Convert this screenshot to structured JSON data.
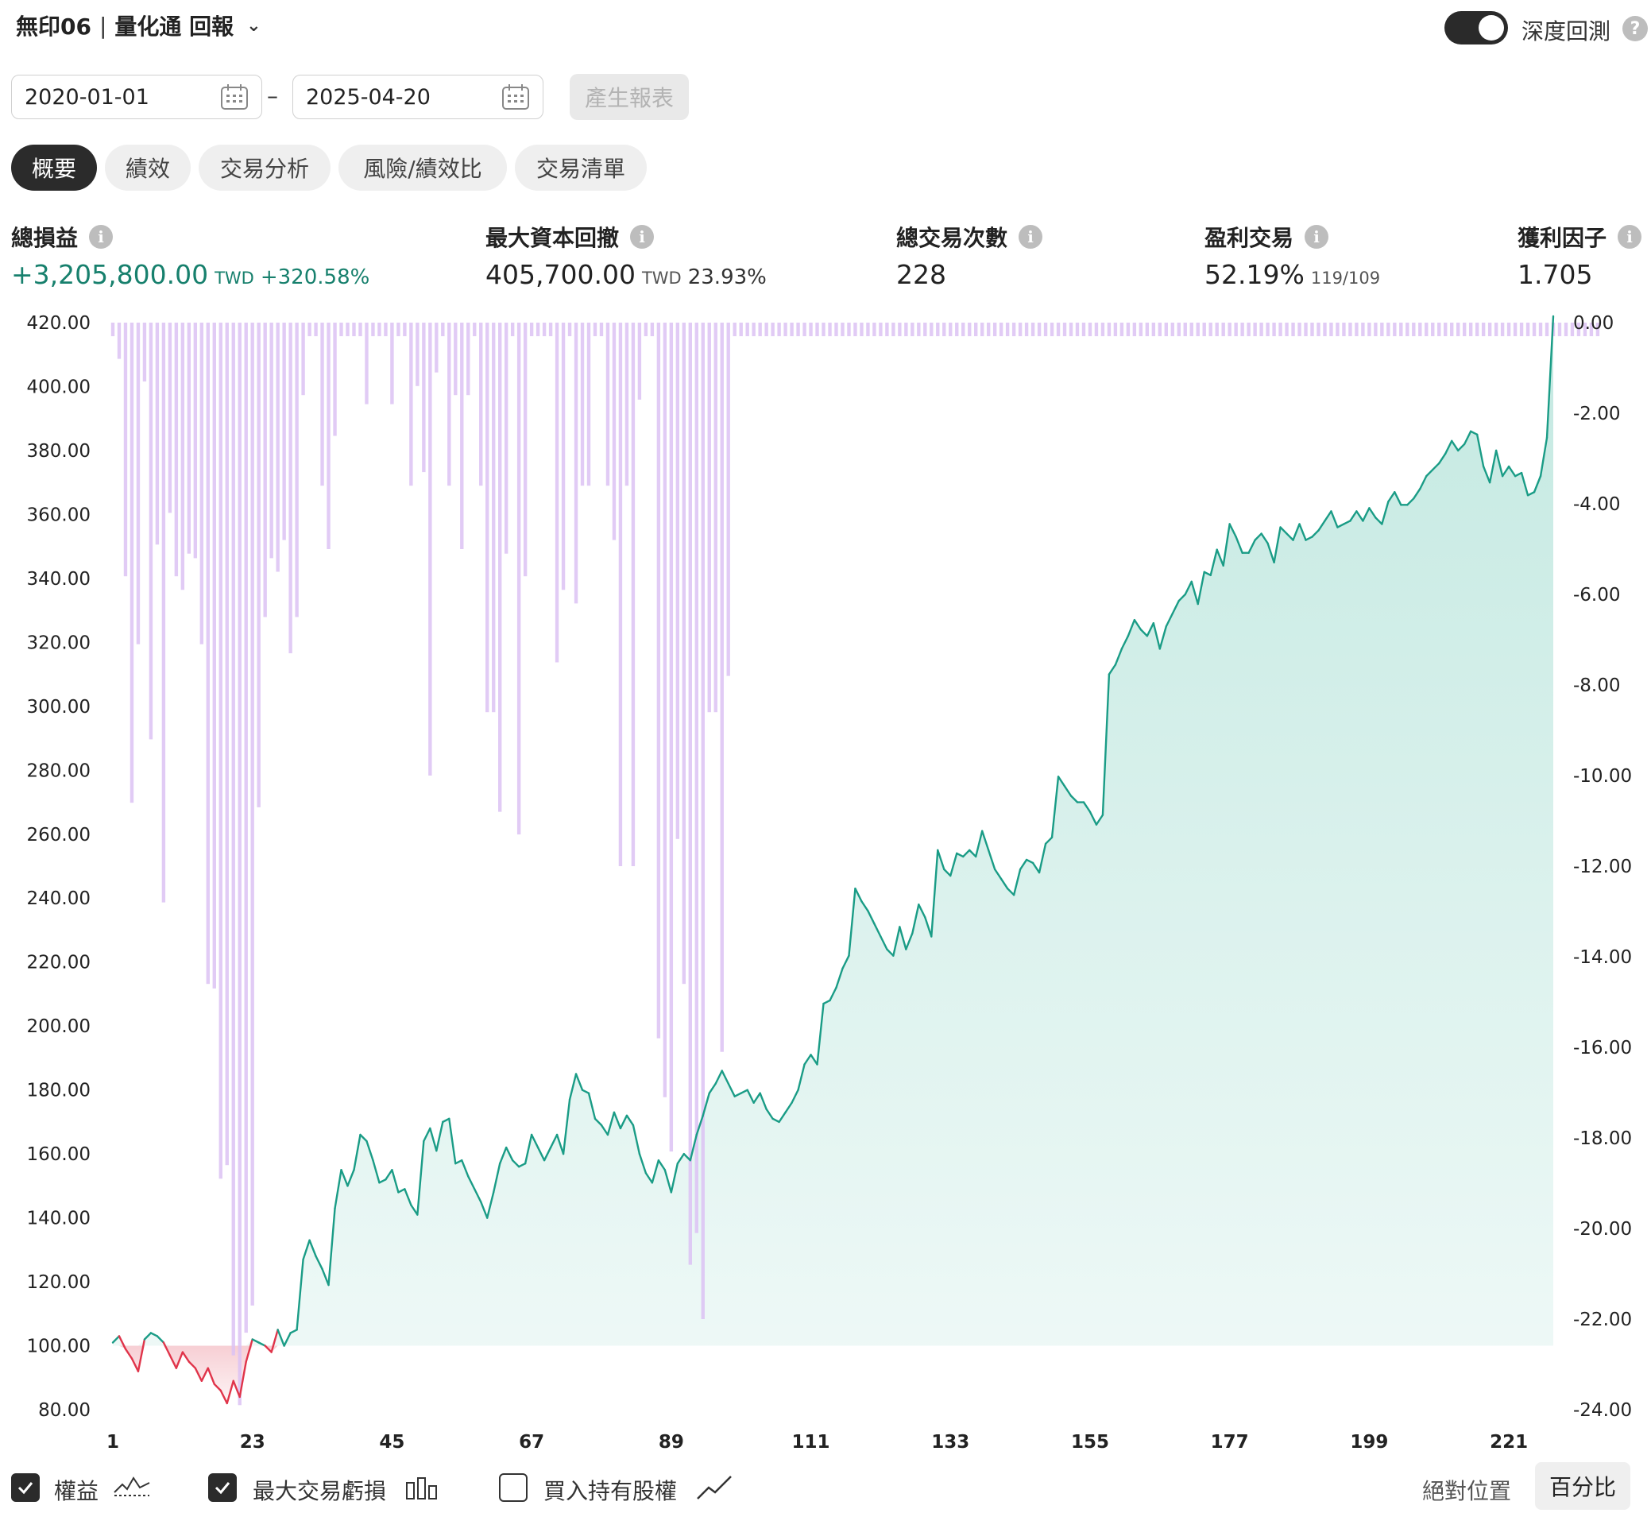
{
  "header": {
    "strategy_name": "無印06",
    "separator": "|",
    "report_title": "量化通 回報",
    "deep_backtest_label": "深度回測"
  },
  "date_range": {
    "start": "2020-01-01",
    "dash": "–",
    "end": "2025-04-20",
    "generate_label": "產生報表"
  },
  "tabs": [
    {
      "label": "概要",
      "active": true
    },
    {
      "label": "績效",
      "active": false
    },
    {
      "label": "交易分析",
      "active": false
    },
    {
      "label": "風險/績效比",
      "active": false
    },
    {
      "label": "交易清單",
      "active": false
    }
  ],
  "stats": {
    "net_profit": {
      "label": "總損益",
      "value": "+3,205,800.00",
      "unit": "TWD",
      "pct": "+320.58%"
    },
    "max_drawdown": {
      "label": "最大資本回撤",
      "value": "405,700.00",
      "unit": "TWD",
      "pct": "23.93%"
    },
    "total_trades": {
      "label": "總交易次數",
      "value": "228"
    },
    "profitable": {
      "label": "盈利交易",
      "value": "52.19%",
      "ratio": "119/109"
    },
    "profit_factor": {
      "label": "獲利因子",
      "value": "1.705"
    }
  },
  "chart_data": {
    "type": "line",
    "title": "",
    "x_ticks": [
      "1",
      "23",
      "45",
      "67",
      "89",
      "111",
      "133",
      "155",
      "177",
      "199",
      "221"
    ],
    "x_range": [
      1,
      228
    ],
    "left_axis": {
      "ticks": [
        "420.00",
        "400.00",
        "380.00",
        "360.00",
        "340.00",
        "320.00",
        "300.00",
        "280.00",
        "260.00",
        "240.00",
        "220.00",
        "200.00",
        "180.00",
        "160.00",
        "140.00",
        "120.00",
        "100.00",
        "80.00"
      ],
      "range": [
        80,
        420
      ]
    },
    "right_axis": {
      "ticks": [
        "0.00",
        "-2.00",
        "-4.00",
        "-6.00",
        "-8.00",
        "-10.00",
        "-12.00",
        "-14.00",
        "-16.00",
        "-18.00",
        "-20.00",
        "-22.00",
        "-24.00"
      ],
      "range": [
        -24,
        0
      ]
    },
    "equity": [
      [
        1,
        101
      ],
      [
        2,
        103
      ],
      [
        3,
        99
      ],
      [
        4,
        96
      ],
      [
        5,
        92
      ],
      [
        6,
        102
      ],
      [
        7,
        104
      ],
      [
        8,
        103
      ],
      [
        9,
        101
      ],
      [
        10,
        97
      ],
      [
        11,
        93
      ],
      [
        12,
        98
      ],
      [
        13,
        95
      ],
      [
        14,
        93
      ],
      [
        15,
        89
      ],
      [
        16,
        93
      ],
      [
        17,
        88
      ],
      [
        18,
        86
      ],
      [
        19,
        82
      ],
      [
        20,
        89
      ],
      [
        21,
        84
      ],
      [
        22,
        95
      ],
      [
        23,
        102
      ],
      [
        24,
        101
      ],
      [
        25,
        100
      ],
      [
        26,
        98
      ],
      [
        27,
        105
      ],
      [
        28,
        100
      ],
      [
        29,
        104
      ],
      [
        30,
        105
      ],
      [
        31,
        127
      ],
      [
        32,
        133
      ],
      [
        33,
        128
      ],
      [
        34,
        124
      ],
      [
        35,
        119
      ],
      [
        36,
        143
      ],
      [
        37,
        155
      ],
      [
        38,
        150
      ],
      [
        39,
        155
      ],
      [
        40,
        166
      ],
      [
        41,
        164
      ],
      [
        42,
        158
      ],
      [
        43,
        151
      ],
      [
        44,
        152
      ],
      [
        45,
        155
      ],
      [
        46,
        148
      ],
      [
        47,
        149
      ],
      [
        48,
        144
      ],
      [
        49,
        141
      ],
      [
        50,
        164
      ],
      [
        51,
        168
      ],
      [
        52,
        161
      ],
      [
        53,
        170
      ],
      [
        54,
        171
      ],
      [
        55,
        157
      ],
      [
        56,
        158
      ],
      [
        57,
        153
      ],
      [
        58,
        149
      ],
      [
        59,
        145
      ],
      [
        60,
        140
      ],
      [
        61,
        148
      ],
      [
        62,
        157
      ],
      [
        63,
        162
      ],
      [
        64,
        158
      ],
      [
        65,
        156
      ],
      [
        66,
        157
      ],
      [
        67,
        166
      ],
      [
        68,
        162
      ],
      [
        69,
        158
      ],
      [
        70,
        162
      ],
      [
        71,
        166
      ],
      [
        72,
        160
      ],
      [
        73,
        177
      ],
      [
        74,
        185
      ],
      [
        75,
        180
      ],
      [
        76,
        179
      ],
      [
        77,
        171
      ],
      [
        78,
        169
      ],
      [
        79,
        166
      ],
      [
        80,
        173
      ],
      [
        81,
        168
      ],
      [
        82,
        172
      ],
      [
        83,
        169
      ],
      [
        84,
        160
      ],
      [
        85,
        154
      ],
      [
        86,
        151
      ],
      [
        87,
        158
      ],
      [
        88,
        155
      ],
      [
        89,
        148
      ],
      [
        90,
        157
      ],
      [
        91,
        160
      ],
      [
        92,
        158
      ],
      [
        93,
        166
      ],
      [
        94,
        172
      ],
      [
        95,
        179
      ],
      [
        96,
        182
      ],
      [
        97,
        186
      ],
      [
        98,
        182
      ],
      [
        99,
        178
      ],
      [
        100,
        179
      ],
      [
        101,
        180
      ],
      [
        102,
        176
      ],
      [
        103,
        179
      ],
      [
        104,
        174
      ],
      [
        105,
        171
      ],
      [
        106,
        170
      ],
      [
        107,
        173
      ],
      [
        108,
        176
      ],
      [
        109,
        180
      ],
      [
        110,
        188
      ],
      [
        111,
        191
      ],
      [
        112,
        188
      ],
      [
        113,
        207
      ],
      [
        114,
        208
      ],
      [
        115,
        212
      ],
      [
        116,
        218
      ],
      [
        117,
        222
      ],
      [
        118,
        243
      ],
      [
        119,
        239
      ],
      [
        120,
        236
      ],
      [
        121,
        232
      ],
      [
        122,
        228
      ],
      [
        123,
        224
      ],
      [
        124,
        222
      ],
      [
        125,
        231
      ],
      [
        126,
        224
      ],
      [
        127,
        229
      ],
      [
        128,
        238
      ],
      [
        129,
        234
      ],
      [
        130,
        228
      ],
      [
        131,
        255
      ],
      [
        132,
        249
      ],
      [
        133,
        247
      ],
      [
        134,
        254
      ],
      [
        135,
        253
      ],
      [
        136,
        255
      ],
      [
        137,
        253
      ],
      [
        138,
        261
      ],
      [
        139,
        255
      ],
      [
        140,
        249
      ],
      [
        141,
        246
      ],
      [
        142,
        243
      ],
      [
        143,
        241
      ],
      [
        144,
        249
      ],
      [
        145,
        252
      ],
      [
        146,
        251
      ],
      [
        147,
        248
      ],
      [
        148,
        257
      ],
      [
        149,
        259
      ],
      [
        150,
        278
      ],
      [
        151,
        275
      ],
      [
        152,
        272
      ],
      [
        153,
        270
      ],
      [
        154,
        270
      ],
      [
        155,
        267
      ],
      [
        156,
        263
      ],
      [
        157,
        266
      ],
      [
        158,
        310
      ],
      [
        159,
        313
      ],
      [
        160,
        318
      ],
      [
        161,
        322
      ],
      [
        162,
        327
      ],
      [
        163,
        324
      ],
      [
        164,
        322
      ],
      [
        165,
        326
      ],
      [
        166,
        318
      ],
      [
        167,
        325
      ],
      [
        168,
        329
      ],
      [
        169,
        333
      ],
      [
        170,
        335
      ],
      [
        171,
        339
      ],
      [
        172,
        332
      ],
      [
        173,
        342
      ],
      [
        174,
        341
      ],
      [
        175,
        349
      ],
      [
        176,
        344
      ],
      [
        177,
        357
      ],
      [
        178,
        353
      ],
      [
        179,
        348
      ],
      [
        180,
        348
      ],
      [
        181,
        352
      ],
      [
        182,
        354
      ],
      [
        183,
        351
      ],
      [
        184,
        345
      ],
      [
        185,
        356
      ],
      [
        186,
        354
      ],
      [
        187,
        352
      ],
      [
        188,
        357
      ],
      [
        189,
        352
      ],
      [
        190,
        353
      ],
      [
        191,
        355
      ],
      [
        192,
        358
      ],
      [
        193,
        361
      ],
      [
        194,
        356
      ],
      [
        195,
        357
      ],
      [
        196,
        358
      ],
      [
        197,
        361
      ],
      [
        198,
        358
      ],
      [
        199,
        362
      ],
      [
        200,
        359
      ],
      [
        201,
        357
      ],
      [
        202,
        364
      ],
      [
        203,
        367
      ],
      [
        204,
        363
      ],
      [
        205,
        363
      ],
      [
        206,
        365
      ],
      [
        207,
        368
      ],
      [
        208,
        372
      ],
      [
        209,
        374
      ],
      [
        210,
        376
      ],
      [
        211,
        379
      ],
      [
        212,
        383
      ],
      [
        213,
        380
      ],
      [
        214,
        382
      ],
      [
        215,
        386
      ],
      [
        216,
        385
      ],
      [
        217,
        375
      ],
      [
        218,
        370
      ],
      [
        219,
        380
      ],
      [
        220,
        372
      ],
      [
        221,
        375
      ],
      [
        222,
        372
      ],
      [
        223,
        373
      ],
      [
        224,
        366
      ],
      [
        225,
        367
      ],
      [
        226,
        372
      ],
      [
        227,
        384
      ],
      [
        228,
        422
      ]
    ],
    "drawdown_pct": [
      -0.3,
      -0.8,
      -5.6,
      -10.6,
      -7.1,
      -1.3,
      -9.2,
      -4.9,
      -12.8,
      -4.2,
      -5.6,
      -5.9,
      -5.1,
      -5.2,
      -7.1,
      -14.6,
      -14.7,
      -18.9,
      -18.6,
      -22.8,
      -23.9,
      -22.3,
      -21.7,
      -10.7,
      -6.5,
      -5.2,
      -5.5,
      -4.8,
      -7.3,
      -6.5,
      -1.6,
      -0.3,
      -0.3,
      -3.6,
      -5.0,
      -2.5,
      -0.3,
      -0.3,
      -0.3,
      -0.3,
      -1.8,
      -0.3,
      -0.3,
      -0.3,
      -1.8,
      -0.3,
      -0.3,
      -3.6,
      -1.4,
      -3.3,
      -10.0,
      -1.1,
      -0.3,
      -3.6,
      -1.6,
      -5.0,
      -1.6,
      -0.3,
      -3.6,
      -8.6,
      -8.6,
      -10.8,
      -5.1,
      -0.3,
      -11.3,
      -5.6,
      -0.3,
      -0.3,
      -0.3,
      -0.3,
      -7.5,
      -5.9,
      -0.3,
      -6.2,
      -3.6,
      -3.6,
      -0.3,
      -0.3,
      -3.6,
      -4.8,
      -12.0,
      -3.6,
      -12.0,
      -1.7,
      -0.3,
      -0.3,
      -15.8,
      -17.1,
      -18.3,
      -11.4,
      -14.6,
      -20.8,
      -20.1,
      -22.0,
      -8.6,
      -8.6,
      -16.1,
      -7.8,
      -0.3,
      -0.3,
      -0.3,
      -0.3,
      -0.3,
      -0.3,
      -0.3,
      -0.3,
      -0.3,
      -0.3,
      -0.3,
      -0.3,
      -0.3,
      -0.3,
      -0.3,
      -0.3,
      -0.3,
      -0.3,
      -0.3,
      -0.3,
      -0.3,
      -0.3,
      -0.3,
      -0.3,
      -0.3,
      -0.3,
      -0.3,
      -0.3,
      -0.3,
      -0.3,
      -0.3,
      -0.3,
      -0.3,
      -0.3,
      -0.3,
      -0.3,
      -0.3,
      -0.3,
      -0.3,
      -0.3,
      -0.3,
      -0.3,
      -0.3,
      -0.3,
      -0.3,
      -0.3,
      -0.3,
      -0.3,
      -0.3,
      -0.3,
      -0.3,
      -0.3,
      -0.3,
      -0.3,
      -0.3,
      -0.3,
      -0.3,
      -0.3,
      -0.3,
      -0.3,
      -0.3,
      -0.3,
      -0.3,
      -0.3,
      -0.3,
      -0.3,
      -0.3,
      -0.3,
      -0.3,
      -0.3,
      -0.3,
      -0.3,
      -0.3,
      -0.3,
      -0.3,
      -0.3,
      -0.3,
      -0.3,
      -0.3,
      -0.3,
      -0.3,
      -0.3,
      -0.3,
      -0.3,
      -0.3,
      -0.3,
      -0.3,
      -0.3,
      -0.3,
      -0.3,
      -0.3,
      -0.3,
      -0.3,
      -0.3,
      -0.3,
      -0.3,
      -0.3,
      -0.3,
      -0.3,
      -0.3,
      -0.3,
      -0.3,
      -0.3,
      -0.3,
      -0.3,
      -0.3,
      -0.3,
      -0.3,
      -0.3,
      -0.3,
      -0.3,
      -0.3,
      -0.3,
      -0.3,
      -0.3,
      -0.3,
      -0.3,
      -0.3,
      -0.3,
      -0.3,
      -0.3,
      -0.3,
      -0.3,
      -0.3,
      -0.3,
      -0.3,
      -0.3,
      -0.3,
      -0.3,
      -0.3,
      -0.3,
      -0.3,
      -0.3,
      -0.3,
      -0.3,
      -0.3,
      -0.3
    ]
  },
  "legend": {
    "equity_label": "權益",
    "equity_checked": true,
    "max_dd_label": "最大交易虧損",
    "max_dd_checked": true,
    "buy_hold_label": "買入持有股權",
    "buy_hold_checked": false,
    "absolute_label": "絕對位置",
    "percent_label": "百分比"
  },
  "colors": {
    "equity_up": "#1a9c86",
    "equity_down": "#e0344a",
    "area_top": "#b9e5dc",
    "bar": "#dcc2f3"
  }
}
